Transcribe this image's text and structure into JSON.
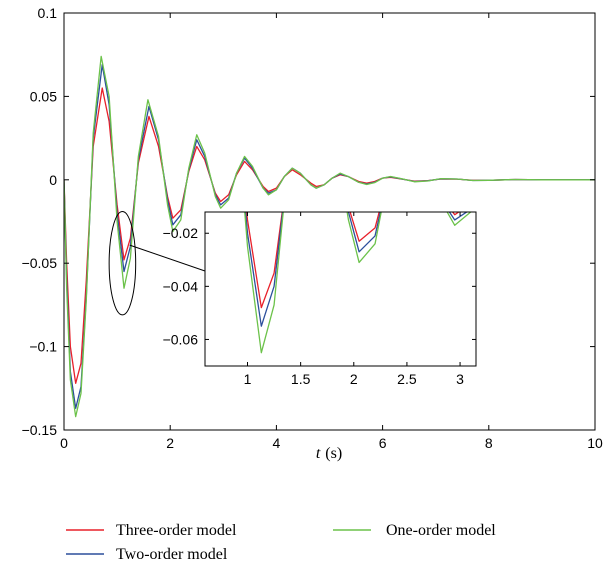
{
  "chart_data": {
    "type": "line",
    "title": "",
    "xlabel_var": "t",
    "xlabel_unit": "(s)",
    "ylabel": "",
    "xlim": [
      0,
      10
    ],
    "ylim": [
      -0.15,
      0.1
    ],
    "x_ticks": [
      0,
      2,
      4,
      6,
      8,
      10
    ],
    "x_tick_labels": [
      "0",
      "2",
      "4",
      "6",
      "8",
      "10"
    ],
    "y_ticks": [
      -0.15,
      -0.1,
      -0.05,
      0,
      0.05,
      0.1
    ],
    "y_tick_labels": [
      "−0.15",
      "−0.1",
      "−0.05",
      "0",
      "0.05",
      "0.1"
    ],
    "grid": false,
    "legend_position": "bottom",
    "series": [
      {
        "name": "Three-order model",
        "color": "#e8202a",
        "points": [
          [
            0,
            0
          ],
          [
            0.05,
            -0.05
          ],
          [
            0.12,
            -0.1
          ],
          [
            0.22,
            -0.122
          ],
          [
            0.32,
            -0.11
          ],
          [
            0.42,
            -0.06
          ],
          [
            0.55,
            0.02
          ],
          [
            0.72,
            0.055
          ],
          [
            0.85,
            0.035
          ],
          [
            1.0,
            -0.015
          ],
          [
            1.13,
            -0.048
          ],
          [
            1.25,
            -0.035
          ],
          [
            1.4,
            0.01
          ],
          [
            1.6,
            0.038
          ],
          [
            1.78,
            0.02
          ],
          [
            1.95,
            -0.01
          ],
          [
            2.05,
            -0.023
          ],
          [
            2.2,
            -0.018
          ],
          [
            2.35,
            0.005
          ],
          [
            2.5,
            0.02
          ],
          [
            2.65,
            0.012
          ],
          [
            2.85,
            -0.008
          ],
          [
            2.95,
            -0.013
          ],
          [
            3.1,
            -0.009
          ],
          [
            3.25,
            0.003
          ],
          [
            3.4,
            0.011
          ],
          [
            3.55,
            0.006
          ],
          [
            3.75,
            -0.004
          ],
          [
            3.85,
            -0.007
          ],
          [
            4.0,
            -0.005
          ],
          [
            4.15,
            0.002
          ],
          [
            4.3,
            0.006
          ],
          [
            4.45,
            0.003
          ],
          [
            4.65,
            -0.002
          ],
          [
            4.75,
            -0.004
          ],
          [
            4.9,
            -0.003
          ],
          [
            5.05,
            0.001
          ],
          [
            5.2,
            0.003
          ],
          [
            5.35,
            0.002
          ],
          [
            5.55,
            -0.001
          ],
          [
            5.7,
            -0.002
          ],
          [
            5.85,
            -0.001
          ],
          [
            6.0,
            0.001
          ],
          [
            6.15,
            0.0015
          ],
          [
            6.35,
            0.0005
          ],
          [
            6.6,
            -0.0008
          ],
          [
            6.85,
            -0.0005
          ],
          [
            7.1,
            0.0005
          ],
          [
            7.4,
            0.0004
          ],
          [
            7.7,
            -0.0003
          ],
          [
            8.0,
            -0.0003
          ],
          [
            8.5,
            0.0002
          ],
          [
            9.0,
            0.0
          ],
          [
            10.0,
            0.0
          ]
        ]
      },
      {
        "name": "Two-order model",
        "color": "#2c4f9c",
        "points": [
          [
            0,
            0
          ],
          [
            0.05,
            -0.06
          ],
          [
            0.12,
            -0.115
          ],
          [
            0.22,
            -0.137
          ],
          [
            0.32,
            -0.124
          ],
          [
            0.42,
            -0.07
          ],
          [
            0.55,
            0.025
          ],
          [
            0.72,
            0.069
          ],
          [
            0.85,
            0.045
          ],
          [
            1.0,
            -0.02
          ],
          [
            1.13,
            -0.055
          ],
          [
            1.25,
            -0.04
          ],
          [
            1.4,
            0.012
          ],
          [
            1.6,
            0.044
          ],
          [
            1.78,
            0.024
          ],
          [
            1.95,
            -0.012
          ],
          [
            2.05,
            -0.027
          ],
          [
            2.2,
            -0.021
          ],
          [
            2.35,
            0.006
          ],
          [
            2.5,
            0.024
          ],
          [
            2.65,
            0.014
          ],
          [
            2.85,
            -0.009
          ],
          [
            2.95,
            -0.015
          ],
          [
            3.1,
            -0.011
          ],
          [
            3.25,
            0.004
          ],
          [
            3.4,
            0.013
          ],
          [
            3.55,
            0.007
          ],
          [
            3.75,
            -0.005
          ],
          [
            3.85,
            -0.008
          ],
          [
            4.0,
            -0.006
          ],
          [
            4.15,
            0.002
          ],
          [
            4.3,
            0.007
          ],
          [
            4.45,
            0.004
          ],
          [
            4.65,
            -0.003
          ],
          [
            4.75,
            -0.005
          ],
          [
            4.9,
            -0.003
          ],
          [
            5.05,
            0.001
          ],
          [
            5.2,
            0.0035
          ],
          [
            5.35,
            0.002
          ],
          [
            5.55,
            -0.0015
          ],
          [
            5.7,
            -0.0025
          ],
          [
            5.85,
            -0.0015
          ],
          [
            6.0,
            0.001
          ],
          [
            6.15,
            0.0018
          ],
          [
            6.35,
            0.0006
          ],
          [
            6.6,
            -0.001
          ],
          [
            6.85,
            -0.0006
          ],
          [
            7.1,
            0.0006
          ],
          [
            7.4,
            0.0005
          ],
          [
            7.7,
            -0.0004
          ],
          [
            8.0,
            -0.0003
          ],
          [
            8.5,
            0.0002
          ],
          [
            9.0,
            0.0
          ],
          [
            10.0,
            0.0
          ]
        ]
      },
      {
        "name": "One-order model",
        "color": "#6cc24a",
        "points": [
          [
            0,
            0
          ],
          [
            0.05,
            -0.065
          ],
          [
            0.12,
            -0.12
          ],
          [
            0.22,
            -0.142
          ],
          [
            0.32,
            -0.128
          ],
          [
            0.42,
            -0.072
          ],
          [
            0.55,
            0.028
          ],
          [
            0.7,
            0.074
          ],
          [
            0.85,
            0.05
          ],
          [
            1.0,
            -0.025
          ],
          [
            1.13,
            -0.065
          ],
          [
            1.25,
            -0.047
          ],
          [
            1.4,
            0.014
          ],
          [
            1.58,
            0.048
          ],
          [
            1.78,
            0.026
          ],
          [
            1.95,
            -0.015
          ],
          [
            2.05,
            -0.031
          ],
          [
            2.2,
            -0.024
          ],
          [
            2.35,
            0.007
          ],
          [
            2.5,
            0.027
          ],
          [
            2.65,
            0.016
          ],
          [
            2.85,
            -0.01
          ],
          [
            2.95,
            -0.017
          ],
          [
            3.1,
            -0.012
          ],
          [
            3.25,
            0.004
          ],
          [
            3.4,
            0.014
          ],
          [
            3.55,
            0.008
          ],
          [
            3.75,
            -0.005
          ],
          [
            3.85,
            -0.009
          ],
          [
            4.0,
            -0.006
          ],
          [
            4.15,
            0.002
          ],
          [
            4.3,
            0.007
          ],
          [
            4.45,
            0.004
          ],
          [
            4.65,
            -0.003
          ],
          [
            4.75,
            -0.005
          ],
          [
            4.9,
            -0.003
          ],
          [
            5.05,
            0.001
          ],
          [
            5.2,
            0.004
          ],
          [
            5.35,
            0.002
          ],
          [
            5.55,
            -0.0015
          ],
          [
            5.7,
            -0.0028
          ],
          [
            5.85,
            -0.0017
          ],
          [
            6.0,
            0.001
          ],
          [
            6.15,
            0.002
          ],
          [
            6.35,
            0.0007
          ],
          [
            6.6,
            -0.0012
          ],
          [
            6.85,
            -0.0007
          ],
          [
            7.1,
            0.0007
          ],
          [
            7.4,
            0.0005
          ],
          [
            7.7,
            -0.0004
          ],
          [
            8.0,
            -0.0003
          ],
          [
            8.5,
            0.0002
          ],
          [
            9.0,
            0.0
          ],
          [
            10.0,
            0.0
          ]
        ]
      }
    ],
    "inset": {
      "xlim": [
        0.6,
        3.15
      ],
      "ylim": [
        -0.07,
        -0.012
      ],
      "x_ticks": [
        1,
        1.5,
        2,
        2.5,
        3
      ],
      "x_tick_labels": [
        "1",
        "1.5",
        "2",
        "2.5",
        "3"
      ],
      "y_ticks": [
        -0.02,
        -0.04,
        -0.06
      ],
      "y_tick_labels": [
        "−0.02",
        "−0.04",
        "−0.06"
      ]
    },
    "zoom_marker": {
      "center": [
        1.1,
        -0.05
      ],
      "x_radius": 0.25,
      "y_radius": 0.031
    }
  }
}
